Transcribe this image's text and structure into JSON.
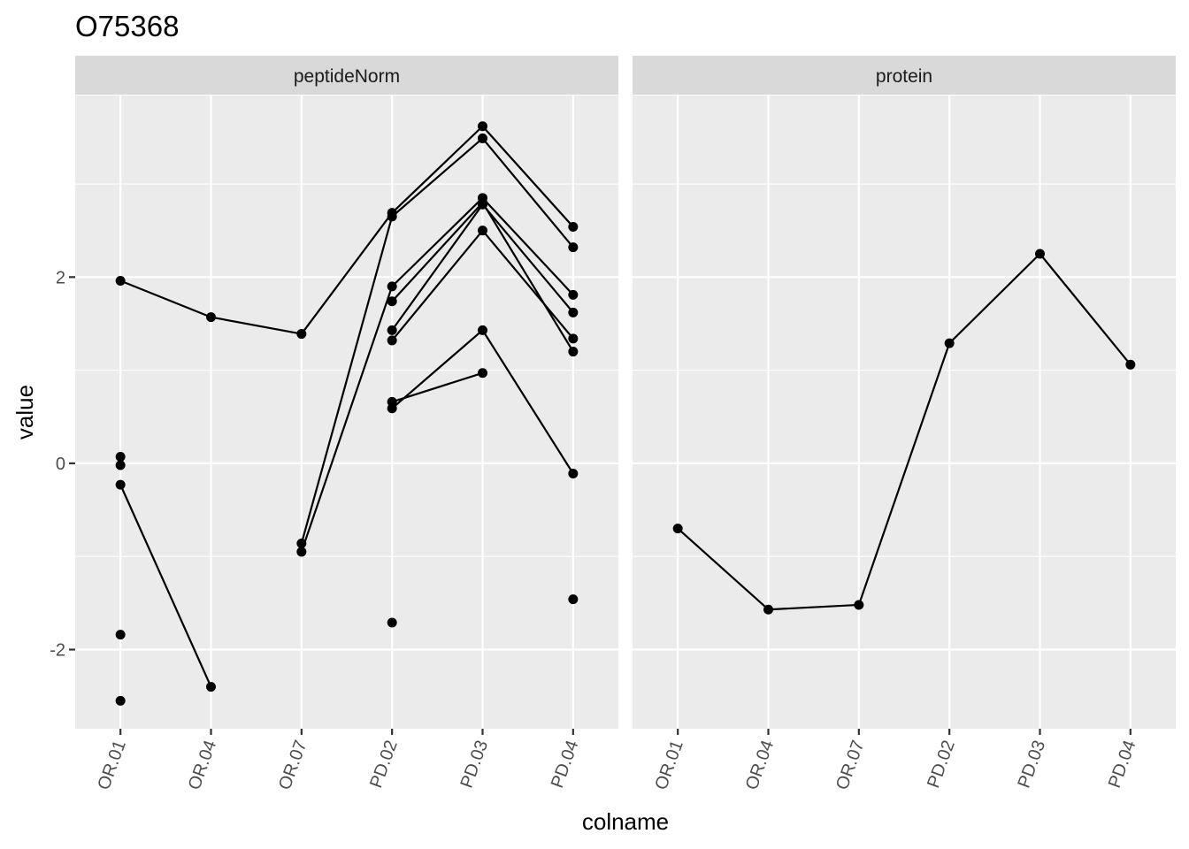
{
  "chart_data": {
    "type": "line",
    "title": "O75368",
    "xlabel": "colname",
    "ylabel": "value",
    "ylim": [
      -2.85,
      3.95
    ],
    "yticks": [
      -2,
      0,
      2
    ],
    "ytick_labels": [
      "-2",
      "0",
      "2"
    ],
    "grid": true,
    "categories": [
      "OR.01",
      "OR.04",
      "OR.07",
      "PD.02",
      "PD.03",
      "PD.04"
    ],
    "panels": [
      {
        "name": "peptideNorm",
        "series": [
          {
            "values": [
              1.96,
              1.57,
              1.39,
              2.69,
              3.62,
              2.54
            ]
          },
          {
            "values": [
              null,
              null,
              -0.86,
              2.65,
              3.49,
              2.32
            ]
          },
          {
            "values": [
              null,
              null,
              -0.95,
              1.9,
              2.85,
              1.81
            ]
          },
          {
            "values": [
              null,
              null,
              null,
              1.74,
              2.8,
              1.2
            ]
          },
          {
            "values": [
              null,
              null,
              null,
              1.43,
              2.78,
              1.62
            ]
          },
          {
            "values": [
              null,
              null,
              null,
              1.32,
              2.5,
              1.34
            ]
          },
          {
            "values": [
              null,
              null,
              null,
              0.59,
              1.43,
              -0.11
            ]
          },
          {
            "values": [
              null,
              null,
              null,
              0.66,
              0.97,
              null
            ]
          },
          {
            "values": [
              -0.23,
              -2.4,
              null,
              null,
              null,
              null
            ]
          },
          {
            "values": [
              0.07,
              null,
              null,
              null,
              null,
              null
            ]
          },
          {
            "values": [
              -0.02,
              null,
              null,
              null,
              null,
              null
            ]
          },
          {
            "values": [
              -1.84,
              null,
              null,
              null,
              null,
              null
            ]
          },
          {
            "values": [
              -2.55,
              null,
              null,
              null,
              null,
              null
            ]
          },
          {
            "values": [
              null,
              null,
              null,
              -1.71,
              null,
              null
            ]
          },
          {
            "values": [
              null,
              null,
              null,
              null,
              null,
              -1.46
            ]
          }
        ]
      },
      {
        "name": "protein",
        "series": [
          {
            "values": [
              -0.7,
              -1.57,
              -1.52,
              1.29,
              2.25,
              1.06
            ]
          }
        ]
      }
    ]
  }
}
